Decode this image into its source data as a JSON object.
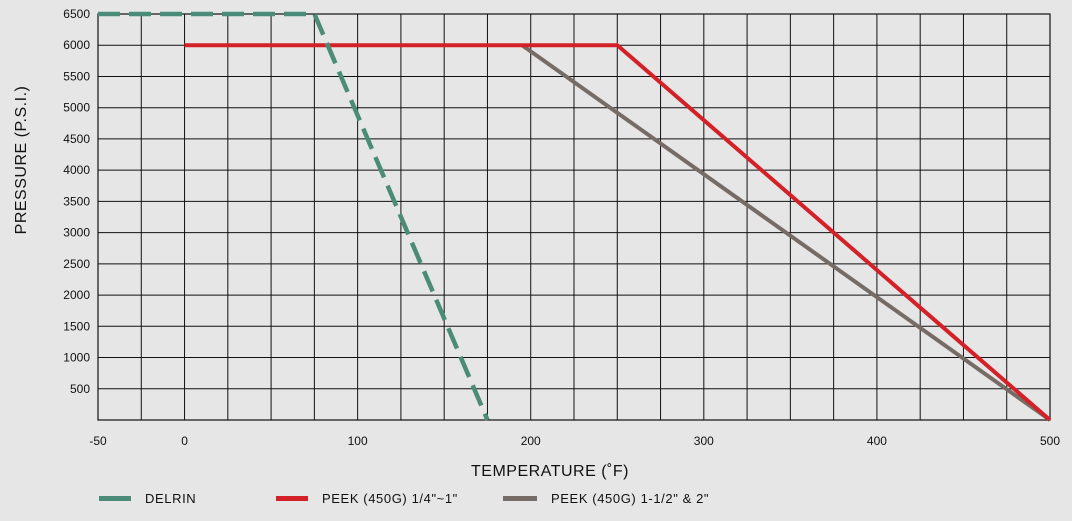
{
  "chart_data": {
    "type": "line",
    "xlabel": "TEMPERATURE (˚F)",
    "ylabel": "PRESSURE (P.S.I.)",
    "xlim": [
      -50,
      500
    ],
    "ylim": [
      0,
      6500
    ],
    "x_ticks": [
      -50,
      0,
      100,
      200,
      300,
      400,
      500
    ],
    "y_ticks": [
      500,
      1000,
      1500,
      2000,
      2500,
      3000,
      3500,
      4000,
      4500,
      5000,
      5500,
      6000,
      6500
    ],
    "grid": true,
    "grid_x_step": 25,
    "grid_y_step": 500,
    "legend_position": "bottom",
    "series": [
      {
        "name": "DELRIN",
        "color": "#4a8c77",
        "dashed": true,
        "points": [
          [
            -50,
            6500
          ],
          [
            75,
            6500
          ],
          [
            175,
            0
          ]
        ]
      },
      {
        "name": "PEEK (450G) 1/4\"~1\"",
        "color": "#d42027",
        "dashed": false,
        "points": [
          [
            0,
            6000
          ],
          [
            250,
            6000
          ],
          [
            500,
            0
          ]
        ]
      },
      {
        "name": "PEEK (450G) 1-1/2\" & 2\"",
        "color": "#776b66",
        "dashed": false,
        "points": [
          [
            195,
            6000
          ],
          [
            500,
            0
          ]
        ]
      }
    ]
  }
}
